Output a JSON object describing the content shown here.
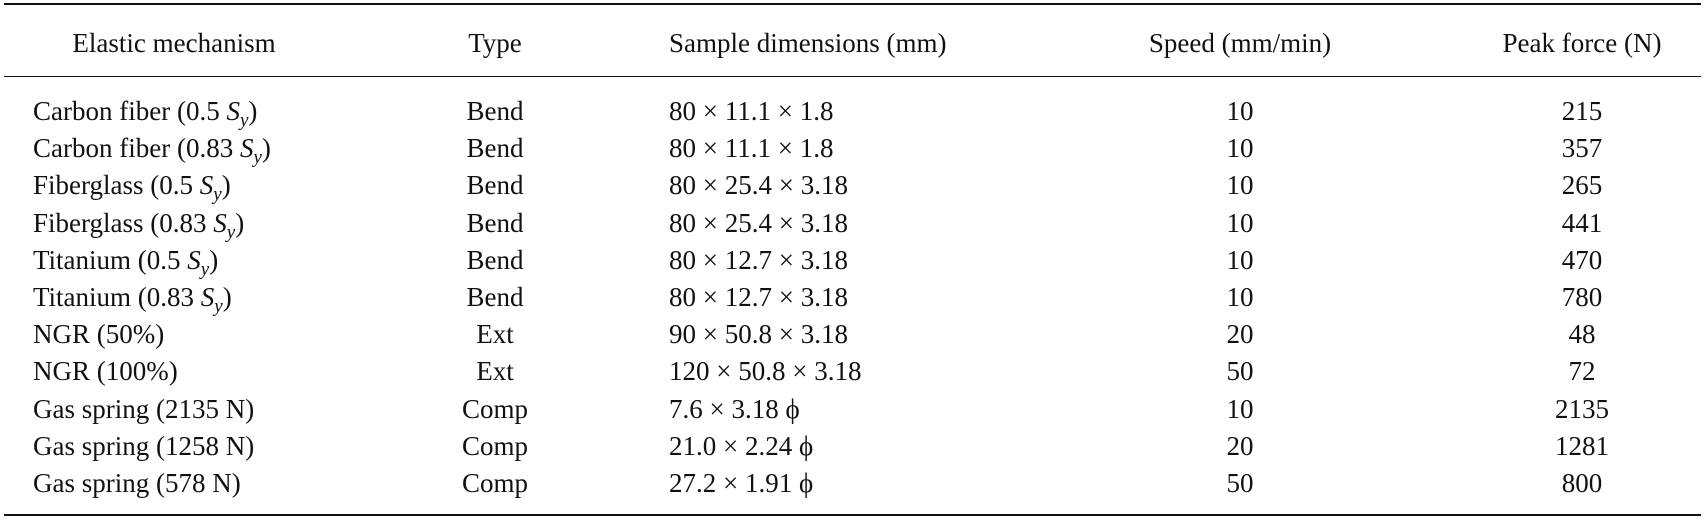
{
  "table": {
    "header": [
      "Elastic mechanism",
      "Type",
      "Sample dimensions (mm)",
      "Speed (mm/min)",
      "Peak force (N)"
    ],
    "rows": [
      [
        [
          "Carbon fiber (0.5 ",
          "S",
          "y",
          ")"
        ],
        "Bend",
        "80 × 11.1 × 1.8",
        10,
        215
      ],
      [
        [
          "Carbon fiber (0.83 ",
          "S",
          "y",
          ")"
        ],
        "Bend",
        "80 × 11.1 × 1.8",
        10,
        357
      ],
      [
        [
          "Fiberglass (0.5 ",
          "S",
          "y",
          ")"
        ],
        "Bend",
        "80 × 25.4 × 3.18",
        10,
        265
      ],
      [
        [
          "Fiberglass (0.83 ",
          "S",
          "y",
          ")"
        ],
        "Bend",
        "80 × 25.4 × 3.18",
        10,
        441
      ],
      [
        [
          "Titanium (0.5 ",
          "S",
          "y",
          ")"
        ],
        "Bend",
        "80 × 12.7 × 3.18",
        10,
        470
      ],
      [
        [
          "Titanium (0.83 ",
          "S",
          "y",
          ")"
        ],
        "Bend",
        "80 × 12.7 × 3.18",
        10,
        780
      ],
      [
        "NGR (50%)",
        "Ext",
        "90 × 50.8 × 3.18",
        20,
        48
      ],
      [
        "NGR (100%)",
        "Ext",
        "120 × 50.8 × 3.18",
        50,
        72
      ],
      [
        "Gas spring (2135 N)",
        "Comp",
        "7.6 × 3.18 ϕ",
        10,
        2135
      ],
      [
        "Gas spring (1258 N)",
        "Comp",
        "21.0 × 2.24 ϕ",
        20,
        1281
      ],
      [
        "Gas spring (578 N)",
        "Comp",
        "27.2 × 1.91 ϕ",
        50,
        800
      ]
    ]
  }
}
